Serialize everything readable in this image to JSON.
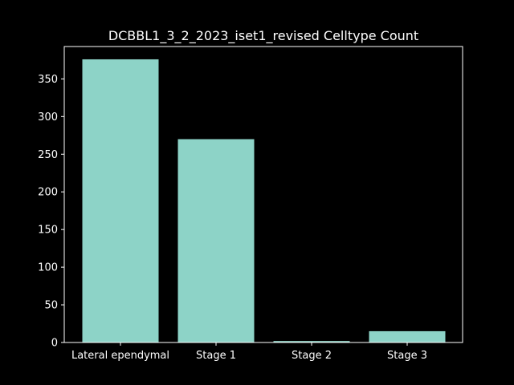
{
  "chart_data": {
    "type": "bar",
    "title": "DCBBL1_3_2_2023_iset1_revised Celltype Count",
    "xlabel": "",
    "ylabel": "",
    "categories": [
      "Lateral ependymal",
      "Stage 1",
      "Stage 2",
      "Stage 3"
    ],
    "values": [
      376,
      270,
      2,
      15
    ],
    "ylim": [
      0,
      393
    ],
    "yticks": [
      0,
      50,
      100,
      150,
      200,
      250,
      300,
      350
    ],
    "bar_color": "#8dd3c7",
    "background_color": "#000000",
    "foreground_color": "#ffffff",
    "grid": false,
    "legend": "none"
  }
}
